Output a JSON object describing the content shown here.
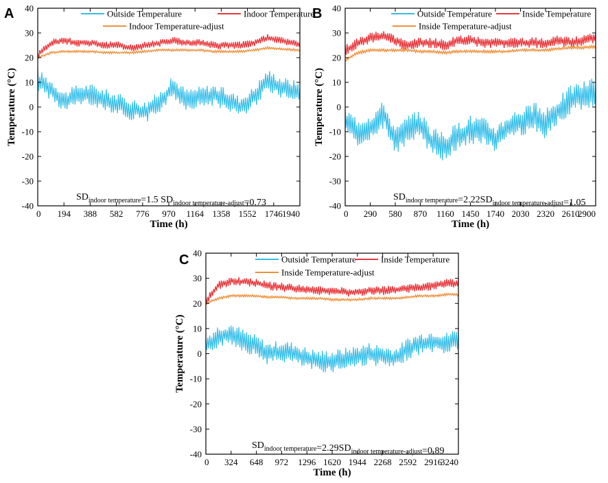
{
  "colors": {
    "outside": "#33bde8",
    "inside": "#e8383c",
    "adjust": "#f0903a",
    "axis": "#000000"
  },
  "chart_data": [
    {
      "panel": "A",
      "type": "line",
      "xlabel": "Time (h)",
      "ylabel": "Temperature (°C)",
      "xlim": [
        0,
        1940
      ],
      "ylim": [
        -40,
        40
      ],
      "xticks": [
        0,
        194,
        388,
        582,
        776,
        970,
        1164,
        1358,
        1552,
        1746,
        1940
      ],
      "yticks": [
        -40,
        -30,
        -20,
        -10,
        0,
        10,
        20,
        30,
        40
      ],
      "legend_position": "top",
      "series": [
        {
          "name": "Outside Temperature",
          "color_key": "outside",
          "x": [
            0,
            100,
            200,
            300,
            400,
            500,
            600,
            700,
            800,
            900,
            1000,
            1100,
            1200,
            1300,
            1400,
            1500,
            1600,
            1700,
            1800,
            1940
          ],
          "y": [
            11,
            7,
            2,
            5,
            5,
            3,
            1,
            -1,
            -2,
            2,
            8,
            3,
            4,
            5,
            3,
            0,
            4,
            11,
            8,
            6
          ],
          "amplitude": 4.5
        },
        {
          "name": "Indoor Temperature",
          "color_key": "inside",
          "x": [
            0,
            100,
            200,
            300,
            400,
            500,
            600,
            700,
            800,
            900,
            1000,
            1100,
            1200,
            1300,
            1400,
            1500,
            1600,
            1700,
            1800,
            1940
          ],
          "y": [
            21,
            26,
            27,
            26,
            26,
            25,
            25,
            24,
            25,
            26,
            27,
            26,
            26,
            25,
            25,
            25,
            26,
            28,
            27,
            25
          ],
          "amplitude": 1.6
        },
        {
          "name": "Indoor Temperature-adjust",
          "color_key": "adjust",
          "x": [
            0,
            100,
            200,
            300,
            400,
            500,
            600,
            700,
            800,
            900,
            1000,
            1100,
            1200,
            1300,
            1400,
            1500,
            1600,
            1700,
            1800,
            1940
          ],
          "y": [
            20,
            22,
            22.5,
            22.5,
            22.5,
            22,
            22,
            22,
            22.5,
            23,
            23,
            23,
            23,
            22.5,
            22.5,
            22.5,
            23,
            24,
            23.5,
            23
          ],
          "amplitude": 0.5
        }
      ],
      "annotation": {
        "sd1_label": "SD",
        "sd1_sub": "indoor temperature",
        "sd1_value": "=1.5",
        "sd2_label": "SD",
        "sd2_sub": "indoor temperature-adjust",
        "sd2_value": "=0.73"
      }
    },
    {
      "panel": "B",
      "type": "line",
      "xlabel": "Time (h)",
      "ylabel": "Temperature (°C)",
      "xlim": [
        0,
        2900
      ],
      "ylim": [
        -40,
        40
      ],
      "xticks": [
        0,
        290,
        580,
        870,
        1160,
        1450,
        1740,
        2030,
        2320,
        2610,
        2900
      ],
      "yticks": [
        -40,
        -30,
        -20,
        -10,
        0,
        10,
        20,
        30,
        40
      ],
      "legend_position": "top",
      "series": [
        {
          "name": "Outside Temperature",
          "color_key": "outside",
          "x": [
            0,
            150,
            300,
            450,
            580,
            700,
            870,
            1000,
            1160,
            1300,
            1450,
            1600,
            1740,
            1900,
            2030,
            2200,
            2320,
            2450,
            2610,
            2750,
            2900
          ],
          "y": [
            -6,
            -10,
            -8,
            -3,
            -14,
            -10,
            -7,
            -14,
            -16,
            -12,
            -9,
            -10,
            -13,
            -8,
            -6,
            -4,
            -7,
            -2,
            3,
            5,
            6
          ],
          "amplitude": 6
        },
        {
          "name": "Inside Temperature",
          "color_key": "inside",
          "x": [
            0,
            150,
            300,
            450,
            580,
            700,
            870,
            1000,
            1160,
            1300,
            1450,
            1600,
            1740,
            1900,
            2030,
            2200,
            2320,
            2450,
            2610,
            2750,
            2900
          ],
          "y": [
            23,
            26,
            28,
            29,
            27,
            25,
            26,
            26,
            25,
            27,
            27,
            26,
            26,
            26,
            26,
            26,
            26,
            27,
            26,
            27,
            28
          ],
          "amplitude": 2.2
        },
        {
          "name": "Inside Temperature-adjust",
          "color_key": "adjust",
          "x": [
            0,
            150,
            300,
            450,
            580,
            700,
            870,
            1000,
            1160,
            1300,
            1450,
            1600,
            1740,
            1900,
            2030,
            2200,
            2320,
            2450,
            2610,
            2750,
            2900
          ],
          "y": [
            19,
            22,
            23,
            23,
            23,
            23,
            22.5,
            22.5,
            22,
            22.5,
            22.5,
            22.5,
            22.5,
            22.5,
            23,
            23,
            23,
            23.5,
            24,
            24,
            24.5
          ],
          "amplitude": 0.6
        }
      ],
      "annotation": {
        "sd1_label": "SD",
        "sd1_sub": "indoor temperature",
        "sd1_value": "=2.22",
        "sd2_label": "SD",
        "sd2_sub": "indoor temperature-adjust",
        "sd2_value": "=1.05"
      }
    },
    {
      "panel": "C",
      "type": "line",
      "xlabel": "Time (h)",
      "ylabel": "Temperature (°C)",
      "xlim": [
        0,
        3240
      ],
      "ylim": [
        -40,
        40
      ],
      "xticks": [
        0,
        324,
        648,
        972,
        1296,
        1620,
        1944,
        2268,
        2592,
        2916,
        3240
      ],
      "yticks": [
        -40,
        -30,
        -20,
        -10,
        0,
        10,
        20,
        30,
        40
      ],
      "legend_position": "top",
      "series": [
        {
          "name": "Outside Temperature",
          "color_key": "outside",
          "x": [
            0,
            160,
            324,
            500,
            648,
            800,
            972,
            1150,
            1296,
            1450,
            1620,
            1800,
            1944,
            2100,
            2268,
            2430,
            2592,
            2750,
            2916,
            3080,
            3240
          ],
          "y": [
            3,
            7,
            8,
            5,
            3,
            0,
            1,
            0,
            -2,
            -3,
            -3,
            -2,
            -1,
            0,
            -1,
            -2,
            2,
            4,
            5,
            4,
            6
          ],
          "amplitude": 4.5
        },
        {
          "name": "Inside Temperature",
          "color_key": "inside",
          "x": [
            0,
            160,
            324,
            500,
            648,
            800,
            972,
            1150,
            1296,
            1450,
            1620,
            1800,
            1944,
            2100,
            2268,
            2430,
            2592,
            2750,
            2916,
            3080,
            3240
          ],
          "y": [
            21,
            27,
            29,
            28.5,
            28,
            27,
            26.5,
            26,
            25.5,
            25,
            25,
            24.5,
            24.5,
            25,
            25,
            25.5,
            26,
            26.5,
            27,
            28,
            28
          ],
          "amplitude": 1.8
        },
        {
          "name": "Inside Temperature-adjust",
          "color_key": "adjust",
          "x": [
            0,
            160,
            324,
            500,
            648,
            800,
            972,
            1150,
            1296,
            1450,
            1620,
            1800,
            1944,
            2100,
            2268,
            2430,
            2592,
            2750,
            2916,
            3080,
            3240
          ],
          "y": [
            20,
            22,
            23,
            23,
            23,
            22.5,
            22.5,
            22,
            22,
            22,
            21.5,
            21.5,
            21.5,
            22,
            22,
            22,
            22.5,
            23,
            23,
            23.5,
            23.5
          ],
          "amplitude": 0.5
        }
      ],
      "annotation": {
        "sd1_label": "SD",
        "sd1_sub": "indoor temperature",
        "sd1_value": "=2.29",
        "sd2_label": "SD",
        "sd2_sub": "indoor temperature-adjust",
        "sd2_value": "=0.89"
      }
    }
  ]
}
